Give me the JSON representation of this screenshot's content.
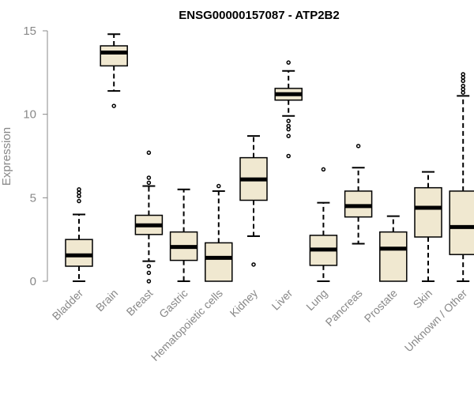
{
  "chart_data": {
    "type": "boxplot",
    "title": "ENSG00000157087 - ATP2B2",
    "xlabel": "",
    "ylabel": "Expression",
    "ylim": [
      0,
      15
    ],
    "yticks": [
      0,
      5,
      10,
      15
    ],
    "box_fill": "#f0e8d0",
    "categories": [
      "Bladder",
      "Brain",
      "Breast",
      "Gastric",
      "Hematopoietic cells",
      "Kidney",
      "Liver",
      "Lung",
      "Pancreas",
      "Prostate",
      "Skin",
      "Unknown / Other"
    ],
    "boxes": [
      {
        "label": "Bladder",
        "whisker_low": 0.0,
        "q1": 0.9,
        "median": 1.55,
        "q3": 2.5,
        "whisker_high": 4.0,
        "outliers": [
          4.8,
          5.1,
          5.3,
          5.5
        ]
      },
      {
        "label": "Brain",
        "whisker_low": 11.4,
        "q1": 12.9,
        "median": 13.7,
        "q3": 14.1,
        "whisker_high": 14.8,
        "outliers": [
          10.5
        ]
      },
      {
        "label": "Breast",
        "whisker_low": 1.2,
        "q1": 2.8,
        "median": 3.35,
        "q3": 3.95,
        "whisker_high": 5.7,
        "outliers": [
          0.0,
          0.5,
          0.9,
          5.9,
          6.2,
          7.7
        ]
      },
      {
        "label": "Gastric",
        "whisker_low": 0.0,
        "q1": 1.25,
        "median": 2.05,
        "q3": 2.95,
        "whisker_high": 5.5,
        "outliers": []
      },
      {
        "label": "Hematopoietic cells",
        "whisker_low": 0.0,
        "q1": 0.0,
        "median": 1.4,
        "q3": 2.3,
        "whisker_high": 5.4,
        "outliers": [
          5.7
        ]
      },
      {
        "label": "Kidney",
        "whisker_low": 2.7,
        "q1": 4.85,
        "median": 6.1,
        "q3": 7.4,
        "whisker_high": 8.7,
        "outliers": [
          1.0
        ]
      },
      {
        "label": "Liver",
        "whisker_low": 9.9,
        "q1": 10.85,
        "median": 11.2,
        "q3": 11.55,
        "whisker_high": 12.6,
        "outliers": [
          7.5,
          8.7,
          9.1,
          9.3,
          9.6,
          13.1
        ]
      },
      {
        "label": "Lung",
        "whisker_low": 0.0,
        "q1": 0.95,
        "median": 1.9,
        "q3": 2.75,
        "whisker_high": 4.7,
        "outliers": [
          6.7
        ]
      },
      {
        "label": "Pancreas",
        "whisker_low": 2.25,
        "q1": 3.85,
        "median": 4.5,
        "q3": 5.4,
        "whisker_high": 6.8,
        "outliers": [
          8.1
        ]
      },
      {
        "label": "Prostate",
        "whisker_low": 0.0,
        "q1": 0.0,
        "median": 1.95,
        "q3": 2.95,
        "whisker_high": 3.9,
        "outliers": []
      },
      {
        "label": "Skin",
        "whisker_low": 0.0,
        "q1": 2.65,
        "median": 4.4,
        "q3": 5.6,
        "whisker_high": 6.55,
        "outliers": []
      },
      {
        "label": "Unknown / Other",
        "whisker_low": 0.0,
        "q1": 1.6,
        "median": 3.25,
        "q3": 5.4,
        "whisker_high": 11.1,
        "outliers": [
          11.3,
          11.5,
          11.7,
          12.0,
          12.2,
          12.4
        ]
      }
    ]
  }
}
